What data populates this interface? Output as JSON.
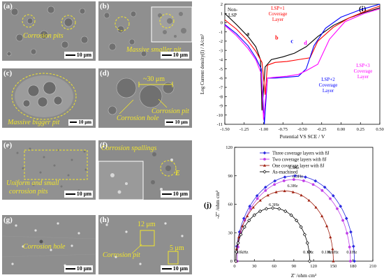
{
  "panels": [
    {
      "id": "a",
      "label": "(a)",
      "notes": [
        "Corrosion pits"
      ],
      "scale": "10 μm"
    },
    {
      "id": "b",
      "label": "(b)",
      "notes": [
        "Massive smaller pit"
      ],
      "scale": "10 μm"
    },
    {
      "id": "c",
      "label": "(c)",
      "notes": [
        "Massive bigger pit"
      ],
      "scale": "10 μm"
    },
    {
      "id": "d",
      "label": "(d)",
      "notes": [
        "~30 μm",
        "Corrosion pit",
        "Corrosion hole"
      ],
      "scale": "10 μm"
    },
    {
      "id": "e",
      "label": "(e)",
      "notes": [
        "Uniform and small",
        "corrosion pits"
      ],
      "scale": "10 μm"
    },
    {
      "id": "f",
      "label": "(f)",
      "notes": [
        "Corrosion spallings",
        "E"
      ],
      "scale": "10 μm"
    },
    {
      "id": "g",
      "label": "(g)",
      "notes": [
        "Corrosion hole"
      ],
      "scale": "10 μm"
    },
    {
      "id": "h",
      "label": "(h)",
      "notes": [
        "12 μm",
        "Corrosion pit",
        "5 μm"
      ],
      "scale": "10 μm"
    }
  ],
  "chart_data": [
    {
      "type": "line",
      "panel_label": "(i)",
      "xlabel": "Potential VS SCE / V",
      "ylabel": "Log Current density(I) / A/cm²",
      "xlim": [
        -1.5,
        0.5
      ],
      "ylim": [
        -11,
        2
      ],
      "xticks": [
        "-1.50",
        "-1.25",
        "-1.00",
        "-0.75",
        "-0.50",
        "-0.25",
        "0.00",
        "0.25",
        "0.50"
      ],
      "yticks": [
        "2",
        "1",
        "0",
        "-1",
        "-2",
        "-3",
        "-4",
        "-5",
        "-6",
        "-7",
        "-8",
        "-9",
        "-10",
        "-11"
      ],
      "annotations": [
        "Non-LSP",
        "LSP+1 Coverage Layer",
        "LSP+2 Coverage Layer",
        "LSP+3 Coverage Layer"
      ],
      "curve_letters": [
        "a",
        "b",
        "c",
        "d"
      ],
      "series": [
        {
          "letter": "a",
          "color": "#000000",
          "x": [
            -1.5,
            -1.35,
            -1.2,
            -1.1,
            -1.04,
            -1.02,
            -0.98,
            -0.9,
            -0.75,
            -0.6,
            -0.45,
            -0.3,
            -0.1,
            0.1,
            0.3,
            0.5
          ],
          "y": [
            1.0,
            -0.2,
            -1.5,
            -2.6,
            -4.0,
            -9.5,
            -4.8,
            -4.0,
            -3.7,
            -3.3,
            -2.6,
            -1.5,
            -0.3,
            0.5,
            1.1,
            1.6
          ]
        },
        {
          "letter": "b",
          "color": "#ff0000",
          "x": [
            -1.5,
            -1.35,
            -1.2,
            -1.1,
            -1.02,
            -0.98,
            -0.95,
            -0.85,
            -0.7,
            -0.55,
            -0.4,
            -0.3,
            -0.1,
            0.1,
            0.3,
            0.5
          ],
          "y": [
            0.3,
            -0.7,
            -2.0,
            -3.1,
            -4.3,
            -7.8,
            -4.6,
            -4.3,
            -4.2,
            -4.0,
            -3.8,
            -2.0,
            -0.5,
            0.5,
            1.2,
            1.8
          ]
        },
        {
          "letter": "c",
          "color": "#0000ff",
          "x": [
            -1.5,
            -1.35,
            -1.2,
            -1.1,
            -1.03,
            -0.99,
            -0.95,
            -0.85,
            -0.7,
            -0.55,
            -0.45,
            -0.35,
            -0.2,
            0.0,
            0.25,
            0.5
          ],
          "y": [
            -0.2,
            -1.2,
            -2.5,
            -3.8,
            -5.0,
            -11.0,
            -6.0,
            -6.0,
            -5.9,
            -5.8,
            -5.0,
            -2.5,
            -0.6,
            0.6,
            1.4,
            2.0
          ]
        },
        {
          "letter": "d",
          "color": "#ff00ff",
          "x": [
            -1.5,
            -1.35,
            -1.2,
            -1.1,
            -1.03,
            -1.0,
            -0.95,
            -0.85,
            -0.7,
            -0.55,
            -0.45,
            -0.3,
            -0.15,
            0.05,
            0.3,
            0.5
          ],
          "y": [
            -0.3,
            -1.4,
            -2.8,
            -4.0,
            -5.5,
            -10.5,
            -6.0,
            -5.9,
            -5.8,
            -5.6,
            -5.2,
            -4.5,
            -1.8,
            0.1,
            1.0,
            1.5
          ]
        }
      ]
    },
    {
      "type": "scatter",
      "panel_label": "(j)",
      "xlabel": "Z' /ohm cm²",
      "ylabel": "-Z'' /ohm cm²",
      "xlim": [
        0,
        210
      ],
      "ylim": [
        0,
        120
      ],
      "xticks": [
        "0",
        "30",
        "60",
        "90",
        "120",
        "150",
        "180",
        "210"
      ],
      "yticks": [
        "0",
        "30",
        "60",
        "90",
        "120"
      ],
      "freq_labels": [
        "6.3Hz",
        "6.3Hz",
        "6.3Hz",
        "6.3Hz",
        "10kHz",
        "0.1Hz",
        "0.1Hz",
        "0.1Hz",
        "0.1Hz"
      ],
      "series": [
        {
          "name": "Three coverage layers with 8J",
          "color": "#2a2ae0",
          "marker": "diamond",
          "cx": 92,
          "r": 90
        },
        {
          "name": "Two coverage layers with 8J",
          "color": "#c040e8",
          "marker": "circle",
          "cx": 90,
          "r": 86
        },
        {
          "name": "One coverage layer with 8J",
          "color": "#a02010",
          "marker": "triangle",
          "cx": 76,
          "r": 74
        },
        {
          "name": "As-machined",
          "color": "#000000",
          "marker": "open-diamond",
          "cx": 58,
          "r": 56
        }
      ]
    }
  ]
}
